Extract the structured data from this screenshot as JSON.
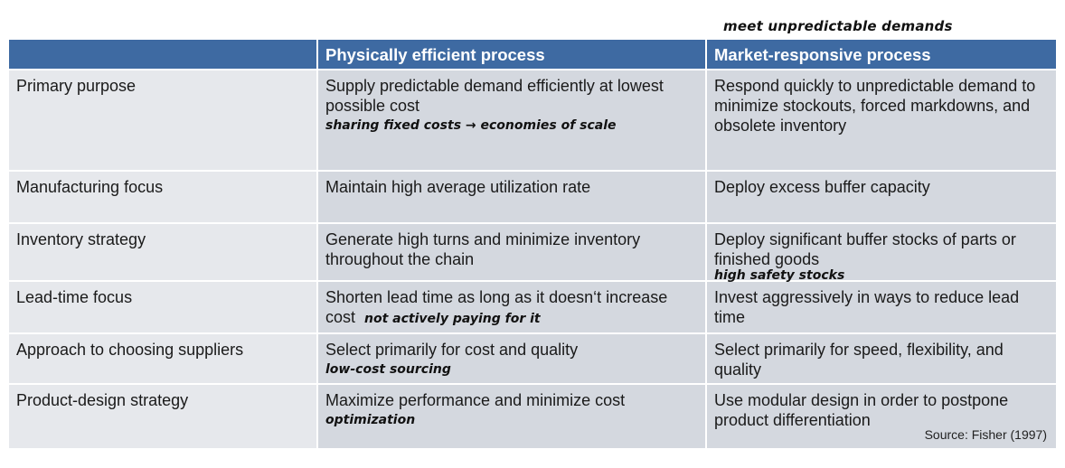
{
  "annotation_top": "meet unpredictable demands",
  "table": {
    "headers": [
      "",
      "Physically efficient process",
      "Market-responsive process"
    ],
    "rows": [
      {
        "label": "Primary purpose",
        "efficient": "Supply predictable demand efficiently at lowest possible cost",
        "efficient_note": "sharing fixed costs → economies of scale",
        "responsive": "Respond quickly to unpredictable demand to minimize stockouts, forced markdowns, and obsolete inventory",
        "responsive_note": ""
      },
      {
        "label": "Manufacturing focus",
        "efficient": "Maintain high average utilization rate",
        "efficient_note": "",
        "responsive": "Deploy excess buffer capacity",
        "responsive_note": ""
      },
      {
        "label": "Inventory strategy",
        "efficient": "Generate high turns and minimize inventory throughout the chain",
        "efficient_note": "",
        "responsive": "Deploy significant buffer stocks of parts or finished goods",
        "responsive_note": "high safety stocks"
      },
      {
        "label": "Lead-time focus",
        "efficient": "Shorten lead time as long as it doesn‘t increase cost",
        "efficient_note": "not actively paying for it",
        "responsive": "Invest aggressively in ways to reduce lead time",
        "responsive_note": ""
      },
      {
        "label": "Approach to choosing suppliers",
        "efficient": "Select primarily for cost and quality",
        "efficient_note": "low-cost sourcing",
        "responsive": "Select primarily for speed, flexibility, and quality",
        "responsive_note": ""
      },
      {
        "label": "Product-design strategy",
        "efficient": "Maximize performance and minimize cost",
        "efficient_note": "optimization",
        "responsive": "Use modular design in order to postpone product differentiation",
        "responsive_note": ""
      }
    ]
  },
  "source": "Source: Fisher (1997)"
}
